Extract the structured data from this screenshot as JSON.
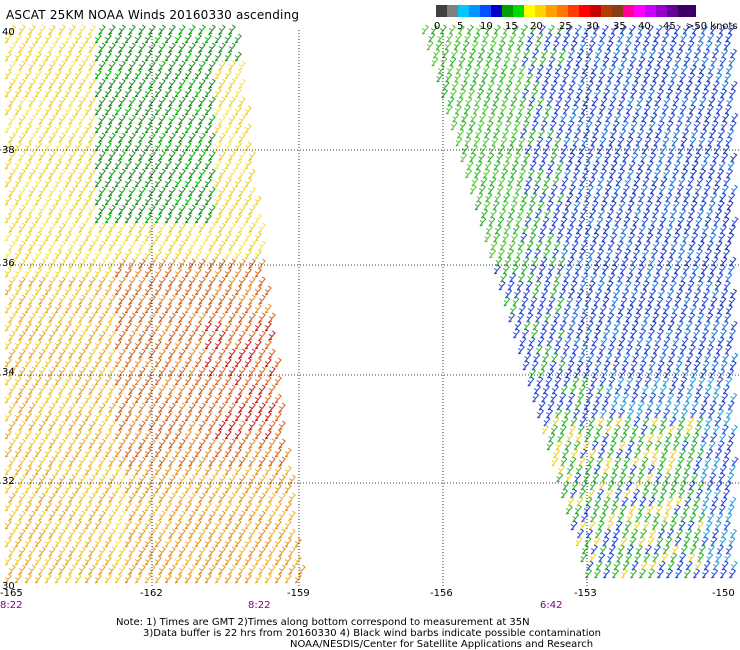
{
  "title": "ASCAT 25KM NOAA Winds 20160330 ascending",
  "legend": {
    "labels": [
      "0",
      "5",
      "10",
      "15",
      "20",
      "25",
      "30",
      "35",
      "40",
      "45",
      ">50 knots"
    ],
    "colors": [
      "#606060",
      "#a0a0a0",
      "#00c8ff",
      "#0064ff",
      "#0000c8",
      "#00a000",
      "#00ff00",
      "#ffd200",
      "#ff8000",
      "#ff0000",
      "#b40000",
      "#ff00c8",
      "#8000ff"
    ]
  },
  "axes": {
    "lon_ticks": [
      "-165",
      "-162",
      "-159",
      "-156",
      "-153",
      "-150"
    ],
    "lat_ticks": [
      "40",
      "38",
      "36",
      "34",
      "32",
      "30"
    ]
  },
  "times": [
    "8:22",
    "8:22",
    "6:42"
  ],
  "notes": {
    "line1": "Note: 1) Times are GMT 2)Times along bottom correspond to measurement at 35N",
    "line2": "3)Data buffer is 22 hrs from 20160330 4) Black wind barbs indicate possible contamination",
    "line3": "NOAA/NESDIS/Center for Satellite Applications and Research"
  }
}
